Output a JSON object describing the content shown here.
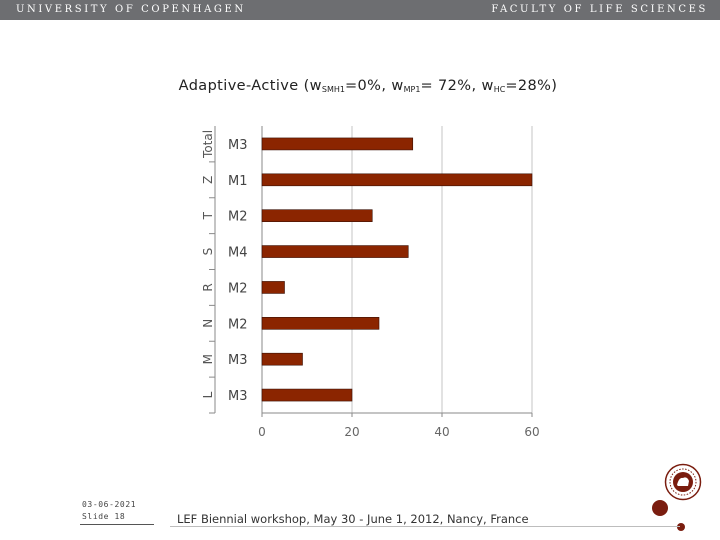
{
  "header": {
    "university": "UNIVERSITY OF COPENHAGEN",
    "faculty": "FACULTY OF LIFE SCIENCES"
  },
  "title": {
    "main": "Adaptive-Active (w",
    "sub1": "SMH1",
    "mid1": "=0%, w",
    "sub2": "MP1",
    "mid2": "= 72%, w",
    "sub3": "HC",
    "end": "=28%)"
  },
  "chart_data": {
    "type": "bar",
    "orientation": "horizontal",
    "title": "Adaptive-Active (wSMH1=0%, wMP1= 72%, wHC=28%)",
    "categories": [
      "Total",
      "Z",
      "T",
      "S",
      "R",
      "N",
      "M",
      "L"
    ],
    "bar_labels": [
      "M3",
      "M1",
      "M2",
      "M4",
      "M2",
      "M2",
      "M3",
      "M3"
    ],
    "values": [
      33.5,
      60,
      24.5,
      32.5,
      5,
      26,
      9,
      20
    ],
    "xlim": [
      0,
      60
    ],
    "xticks": [
      0,
      20,
      40,
      60
    ],
    "grid": "vertical",
    "bar_color": "#8b2500"
  },
  "footer": {
    "date": "03-06-2021",
    "slide": "Slide 18",
    "event": "LEF Biennial workshop, May 30 - June 1, 2012, Nancy, France"
  }
}
